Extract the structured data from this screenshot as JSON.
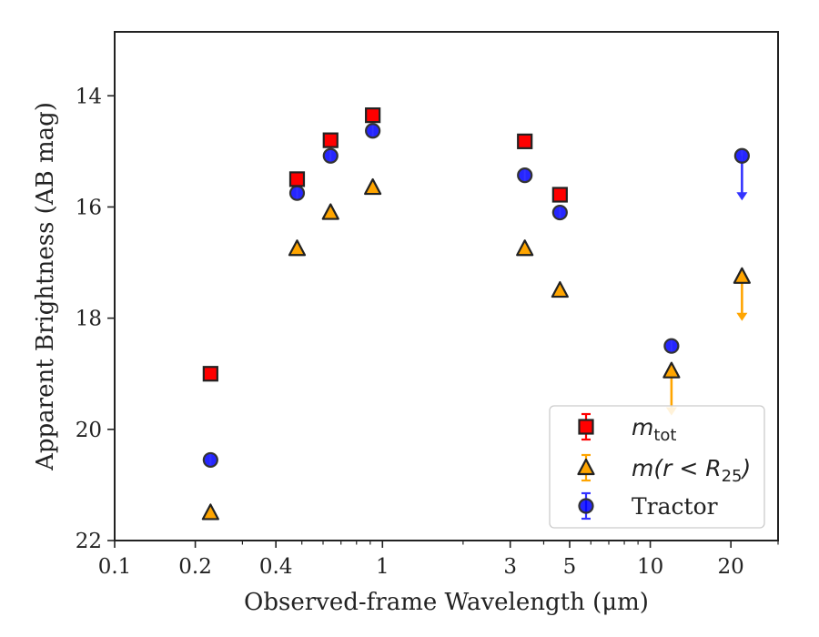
{
  "chart_data": {
    "type": "scatter",
    "xlabel": "Observed-frame Wavelength (μm)",
    "ylabel": "Apparent Brightness (AB mag)",
    "xscale": "log",
    "xlim": [
      0.1,
      30
    ],
    "ylim": [
      22,
      12.85
    ],
    "y_inverted": true,
    "x_ticks": [
      0.1,
      0.2,
      0.4,
      1,
      3,
      5,
      10,
      20
    ],
    "x_tick_labels": [
      "0.1",
      "0.2",
      "0.4",
      "1",
      "3",
      "5",
      "10",
      "20"
    ],
    "y_ticks": [
      14,
      16,
      18,
      20,
      22
    ],
    "y_tick_labels": [
      "14",
      "16",
      "18",
      "20",
      "22"
    ],
    "legend_placement": "lower-right",
    "series": [
      {
        "label_main": "m",
        "label_sub": "tot",
        "marker": "square",
        "color": "#ff0000",
        "errorbar_color": "#ff0000",
        "points": [
          {
            "x": 0.228,
            "y": 19.0
          },
          {
            "x": 0.48,
            "y": 15.5
          },
          {
            "x": 0.64,
            "y": 14.8
          },
          {
            "x": 0.92,
            "y": 14.35
          },
          {
            "x": 3.4,
            "y": 14.82
          },
          {
            "x": 4.6,
            "y": 15.78
          }
        ]
      },
      {
        "label_main": "m(r < R",
        "label_sub": "25",
        "label_tail": ")",
        "marker": "triangle",
        "color": "#ffa500",
        "errorbar_color": "#ffa500",
        "points": [
          {
            "x": 0.228,
            "y": 21.5
          },
          {
            "x": 0.48,
            "y": 16.75
          },
          {
            "x": 0.64,
            "y": 16.1
          },
          {
            "x": 0.92,
            "y": 15.65
          },
          {
            "x": 3.4,
            "y": 16.75
          },
          {
            "x": 4.6,
            "y": 17.5
          },
          {
            "x": 12.0,
            "y": 18.95,
            "upper_limit": true
          },
          {
            "x": 22.0,
            "y": 17.25,
            "upper_limit": true
          }
        ]
      },
      {
        "name": "Tractor",
        "marker": "circle",
        "color": "#0000ff",
        "errorbar_color": "#3333ff",
        "points": [
          {
            "x": 0.228,
            "y": 20.55
          },
          {
            "x": 0.48,
            "y": 15.75
          },
          {
            "x": 0.64,
            "y": 15.08
          },
          {
            "x": 0.92,
            "y": 14.63
          },
          {
            "x": 3.4,
            "y": 15.43
          },
          {
            "x": 4.6,
            "y": 16.1
          },
          {
            "x": 12.0,
            "y": 18.5
          },
          {
            "x": 22.0,
            "y": 15.08,
            "upper_limit": true
          }
        ]
      }
    ]
  }
}
